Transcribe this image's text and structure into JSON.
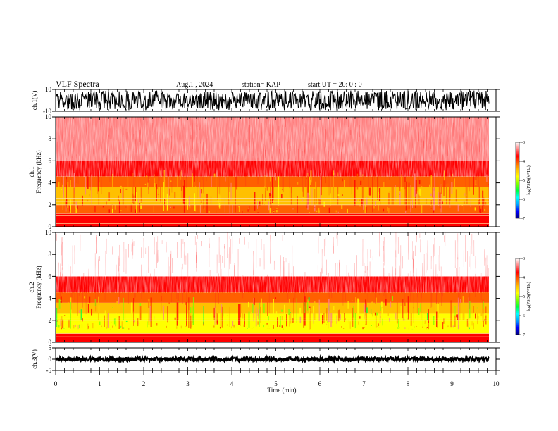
{
  "header": {
    "title": "VLF Spectra",
    "date": "Aug.1 , 2024",
    "station": "station= KAP",
    "start": "start UT = 20: 0 : 0"
  },
  "chart_data": [
    {
      "type": "line",
      "panel": "ch1-waveform",
      "ylabel": "ch.1(V)",
      "ylim": [
        -10,
        10
      ],
      "yticks": [
        "10",
        "-10"
      ],
      "xlim": [
        0,
        10
      ],
      "x_extent_min": 9.84,
      "amplitude_range": [
        -9,
        9
      ],
      "color": "#000000"
    },
    {
      "type": "heatmap",
      "panel": "ch1-spectrogram",
      "ylabel": "ch.1\nFrequency (kHz)",
      "ylabel_lines": [
        "ch.1",
        "Frequency (kHz)"
      ],
      "ylim": [
        0,
        10
      ],
      "yticks": [
        "0",
        "2",
        "4",
        "6",
        "8",
        "10"
      ],
      "xlim": [
        0,
        10
      ],
      "x_extent_min": 9.84,
      "bands": [
        {
          "from_khz": 0,
          "to_khz": 1.2,
          "log_psd": -3.7
        },
        {
          "from_khz": 1.2,
          "to_khz": 2.0,
          "log_psd": -4.2
        },
        {
          "from_khz": 2.0,
          "to_khz": 3.6,
          "log_psd": -4.5
        },
        {
          "from_khz": 3.6,
          "to_khz": 4.6,
          "log_psd": -4.1
        },
        {
          "from_khz": 4.6,
          "to_khz": 6.0,
          "log_psd": -3.8
        },
        {
          "from_khz": 6.0,
          "to_khz": 10,
          "log_psd": -3.2
        }
      ],
      "lines_khz": [
        0.3,
        0.6,
        1.0,
        1.2,
        2.0,
        2.3,
        2.6
      ]
    },
    {
      "type": "heatmap",
      "panel": "ch2-spectrogram",
      "ylabel": "ch.2\nFrequency (kHz)",
      "ylabel_lines": [
        "ch.2",
        "Frequency (kHz)"
      ],
      "ylim": [
        0,
        10
      ],
      "yticks": [
        "0",
        "2",
        "4",
        "6",
        "8",
        "10"
      ],
      "xlim": [
        0,
        10
      ],
      "x_extent_min": 9.84,
      "bands": [
        {
          "from_khz": 0,
          "to_khz": 0.8,
          "log_psd": -3.9
        },
        {
          "from_khz": 0.8,
          "to_khz": 2.6,
          "log_psd": -5.0
        },
        {
          "from_khz": 2.6,
          "to_khz": 3.6,
          "log_psd": -4.5
        },
        {
          "from_khz": 3.6,
          "to_khz": 4.6,
          "log_psd": -4.0
        },
        {
          "from_khz": 4.6,
          "to_khz": 6.0,
          "log_psd": -3.7
        },
        {
          "from_khz": 6.0,
          "to_khz": 10,
          "log_psd": -3.15
        }
      ],
      "lines_khz": [
        0.5,
        0.8,
        2.0,
        2.2
      ]
    },
    {
      "type": "line",
      "panel": "ch3-waveform",
      "ylabel": "ch.3(V)",
      "ylim": [
        -5,
        5
      ],
      "yticks": [
        "5",
        "0",
        "-5"
      ],
      "xlim": [
        0,
        10
      ],
      "x_extent_min": 9.84,
      "amplitude_range": [
        -0.9,
        0.9
      ],
      "color": "#000000"
    }
  ],
  "x_axis": {
    "label": "Time (min)",
    "ticks": [
      "0",
      "1",
      "2",
      "3",
      "4",
      "5",
      "6",
      "7",
      "8",
      "9",
      "10"
    ]
  },
  "colorbar": {
    "label": "log(PSD)(V²/Hz)",
    "range": [
      -7,
      -3
    ],
    "ticks": [
      "-3",
      "-4",
      "-5",
      "-6",
      "-7"
    ],
    "colors": [
      "#000080",
      "#0000ff",
      "#00a0ff",
      "#00ffff",
      "#00ff40",
      "#80ff00",
      "#ffff00",
      "#ffc000",
      "#ff6000",
      "#ff0000",
      "#ff8080",
      "#ffffff"
    ]
  }
}
